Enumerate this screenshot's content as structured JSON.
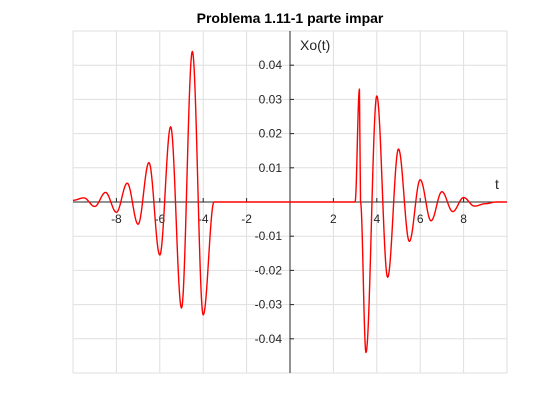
{
  "chart_data": {
    "type": "line",
    "title": "Problema 1.11-1 parte impar",
    "xlabel": "t",
    "ylabel": "Xo(t)",
    "xlim": [
      -10,
      10
    ],
    "ylim": [
      -0.05,
      0.05
    ],
    "xticks": [
      -8,
      -6,
      -4,
      -2,
      2,
      4,
      6,
      8
    ],
    "xtick_labels": [
      "-8",
      "-6",
      "-4",
      "-2",
      "2",
      "4",
      "6",
      "8"
    ],
    "yticks": [
      -0.04,
      -0.03,
      -0.02,
      -0.01,
      0.01,
      0.02,
      0.03,
      0.04
    ],
    "ytick_labels": [
      "-0.04",
      "-0.03",
      "-0.02",
      "-0.01",
      "0.01",
      "0.02",
      "0.03",
      "0.04"
    ],
    "grid": true,
    "axis_location": "origin",
    "series": [
      {
        "color": "#ff0000",
        "x": [
          -10,
          -9.5,
          -9,
          -8.5,
          -8,
          -7.5,
          -7,
          -6.5,
          -6,
          -5.5,
          -5,
          -4.5,
          -4,
          -3.5,
          -3.25,
          -3.2,
          -3,
          0,
          3,
          3.2,
          3.25,
          3.5,
          4,
          4.5,
          5,
          5.5,
          6,
          6.5,
          7,
          7.5,
          8,
          8.5,
          9,
          9.5,
          10
        ],
        "y": [
          0.0005,
          0.0012,
          -0.0013,
          0.0028,
          -0.003,
          0.0055,
          -0.0065,
          0.0115,
          -0.0155,
          0.022,
          -0.031,
          0.044,
          -0.033,
          0.0,
          0.0,
          0.0,
          0.0,
          0.0,
          0.0,
          0.033,
          0.0,
          -0.044,
          0.031,
          -0.022,
          0.0155,
          -0.0115,
          0.0065,
          -0.0055,
          0.003,
          -0.0028,
          0.0013,
          -0.0012,
          -0.0005,
          0.0,
          0.0
        ]
      }
    ]
  }
}
